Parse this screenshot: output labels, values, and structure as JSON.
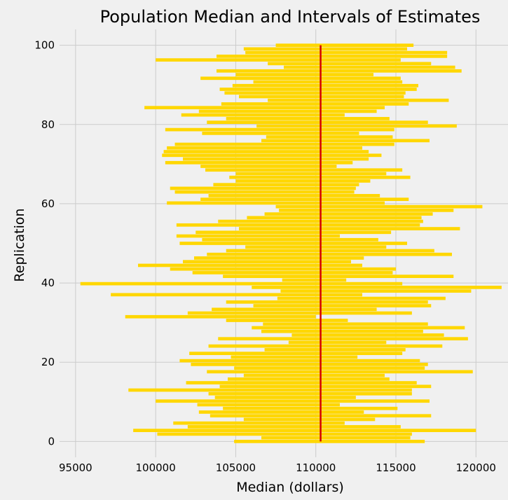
{
  "chart_data": {
    "type": "interval",
    "title": "Population Median and Intervals of Estimates",
    "xlabel": "Median (dollars)",
    "ylabel": "Replication",
    "xlim": [
      94000,
      122000
    ],
    "ylim": [
      -4,
      104
    ],
    "xticks": [
      95000,
      100000,
      105000,
      110000,
      115000,
      120000
    ],
    "yticks": [
      0,
      20,
      40,
      60,
      80,
      100
    ],
    "grid": true,
    "reference_line": {
      "value": 110300,
      "color": "#d40000"
    },
    "bar_color": "#ffd700",
    "intervals": [
      [
        104900,
        116800
      ],
      [
        106600,
        115900
      ],
      [
        100100,
        116000
      ],
      [
        98600,
        120000
      ],
      [
        102000,
        115300
      ],
      [
        101100,
        111800
      ],
      [
        105500,
        113700
      ],
      [
        103400,
        117200
      ],
      [
        102700,
        113000
      ],
      [
        104200,
        115100
      ],
      [
        102600,
        111500
      ],
      [
        100000,
        117100
      ],
      [
        103700,
        112500
      ],
      [
        103300,
        116000
      ],
      [
        98300,
        116000
      ],
      [
        104000,
        117200
      ],
      [
        101900,
        116300
      ],
      [
        104500,
        114600
      ],
      [
        105500,
        114300
      ],
      [
        103200,
        119800
      ],
      [
        104900,
        116800
      ],
      [
        102200,
        117000
      ],
      [
        101500,
        116500
      ],
      [
        104700,
        112600
      ],
      [
        102100,
        115400
      ],
      [
        106800,
        115600
      ],
      [
        103300,
        117900
      ],
      [
        108300,
        114400
      ],
      [
        103900,
        119500
      ],
      [
        108500,
        118000
      ],
      [
        106600,
        116700
      ],
      [
        106000,
        119300
      ],
      [
        106700,
        117000
      ],
      [
        104400,
        112000
      ],
      [
        98100,
        110000
      ],
      [
        102000,
        116000
      ],
      [
        103500,
        113800
      ],
      [
        106100,
        117200
      ],
      [
        104400,
        117000
      ],
      [
        107600,
        118100
      ],
      [
        97200,
        112900
      ],
      [
        107800,
        119700
      ],
      [
        106000,
        121600
      ],
      [
        95300,
        115400
      ],
      [
        107900,
        111900
      ],
      [
        104200,
        118600
      ],
      [
        102300,
        114800
      ],
      [
        100900,
        115000
      ],
      [
        98900,
        112900
      ],
      [
        101700,
        112200
      ],
      [
        102400,
        113000
      ],
      [
        103200,
        118500
      ],
      [
        104400,
        117400
      ],
      [
        105600,
        114400
      ],
      [
        101500,
        115700
      ],
      [
        102900,
        113900
      ],
      [
        101300,
        111500
      ],
      [
        102500,
        114700
      ],
      [
        105200,
        119000
      ],
      [
        101300,
        116500
      ],
      [
        103900,
        116700
      ],
      [
        105700,
        116600
      ],
      [
        106800,
        117300
      ],
      [
        107700,
        118600
      ],
      [
        107500,
        120400
      ],
      [
        100700,
        114300
      ],
      [
        102800,
        115800
      ],
      [
        103300,
        114000
      ],
      [
        101200,
        112400
      ],
      [
        100900,
        112500
      ],
      [
        103600,
        112700
      ],
      [
        105000,
        113400
      ],
      [
        104600,
        115900
      ],
      [
        105000,
        114400
      ],
      [
        103100,
        115400
      ],
      [
        102800,
        111300
      ],
      [
        100600,
        112300
      ],
      [
        101700,
        113300
      ],
      [
        100400,
        114100
      ],
      [
        100500,
        113300
      ],
      [
        100700,
        112900
      ],
      [
        101200,
        114900
      ],
      [
        106600,
        117100
      ],
      [
        106900,
        114800
      ],
      [
        102900,
        112700
      ],
      [
        100600,
        114900
      ],
      [
        106300,
        118800
      ],
      [
        103200,
        117000
      ],
      [
        104400,
        114600
      ],
      [
        101600,
        111800
      ],
      [
        102700,
        113800
      ],
      [
        99300,
        114300
      ],
      [
        104100,
        115800
      ],
      [
        107000,
        118300
      ],
      [
        105200,
        115500
      ],
      [
        104300,
        115600
      ],
      [
        104000,
        116300
      ],
      [
        104800,
        116400
      ],
      [
        106100,
        115400
      ],
      [
        102800,
        115300
      ],
      [
        105000,
        113600
      ],
      [
        103800,
        119100
      ],
      [
        108000,
        118700
      ],
      [
        107000,
        117200
      ],
      [
        100000,
        115300
      ],
      [
        103800,
        118200
      ],
      [
        105600,
        118200
      ],
      [
        105500,
        115700
      ],
      [
        107500,
        116100
      ]
    ]
  }
}
